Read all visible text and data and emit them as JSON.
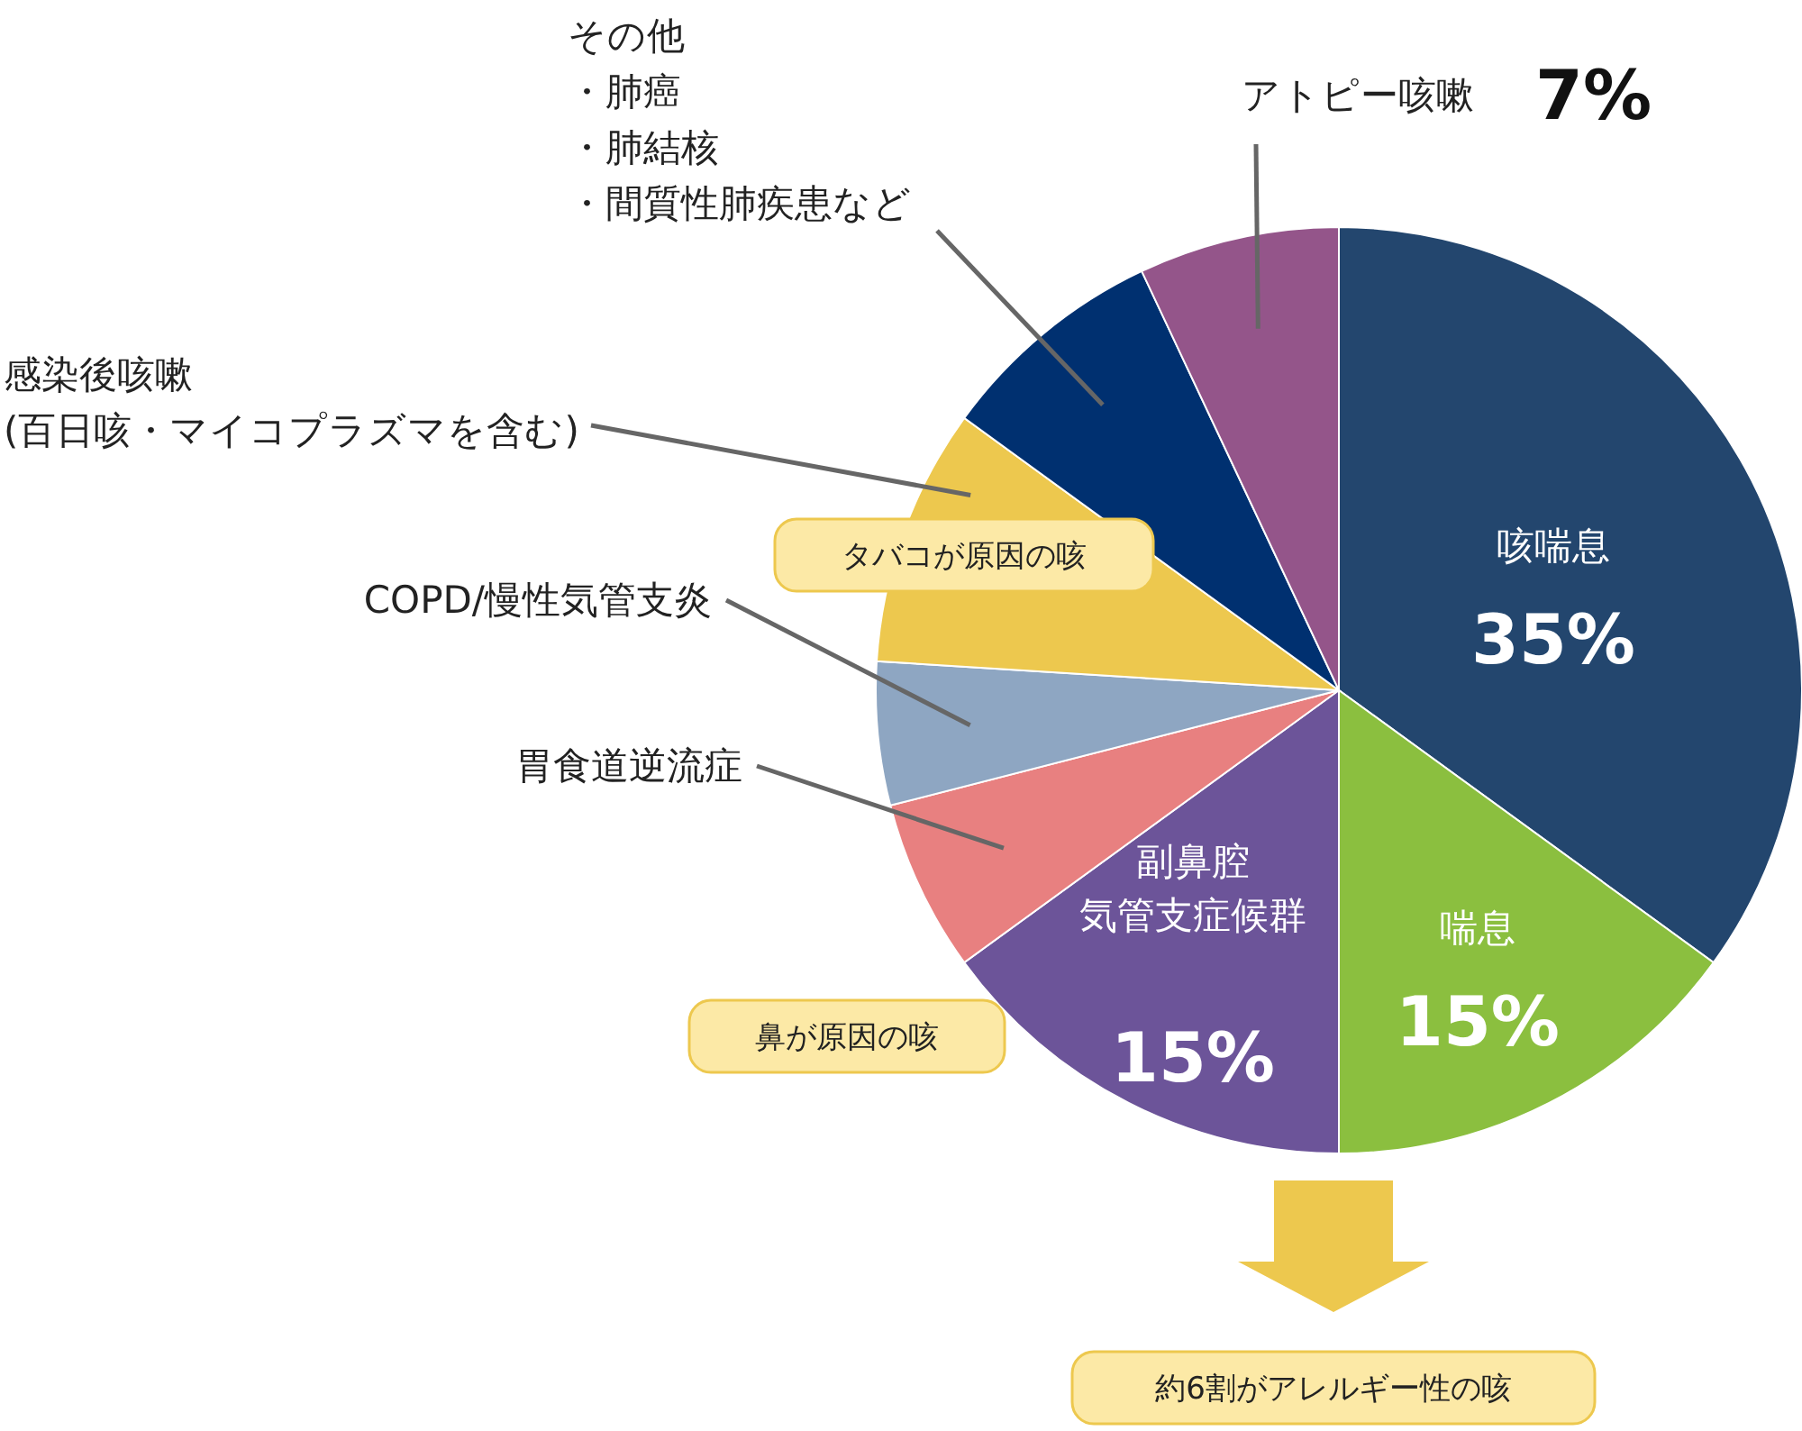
{
  "chart_data": {
    "type": "pie",
    "categories": [
      "咳喘息",
      "喘息",
      "副鼻腔気管支症候群",
      "胃食道逆流症",
      "COPD/慢性気管支炎",
      "感染後咳嗽(百日咳・マイコプラズマを含む)",
      "その他・肺癌・肺結核・間質性肺疾患など",
      "アトピー咳嗽"
    ],
    "values": [
      35,
      15,
      15,
      6,
      5,
      9,
      8,
      7
    ],
    "colors": [
      "#23466e",
      "#8bbf3f",
      "#6c5499",
      "#e88080",
      "#8ea6c2",
      "#edc84e",
      "#003070",
      "#94558a"
    ],
    "value_labels": [
      "35%",
      "15%",
      "15%",
      null,
      null,
      null,
      null,
      "7%"
    ],
    "annotations": [
      "タバコが原因の咳",
      "鼻が原因の咳",
      "約6割がアレルギー性の咳"
    ]
  }
}
